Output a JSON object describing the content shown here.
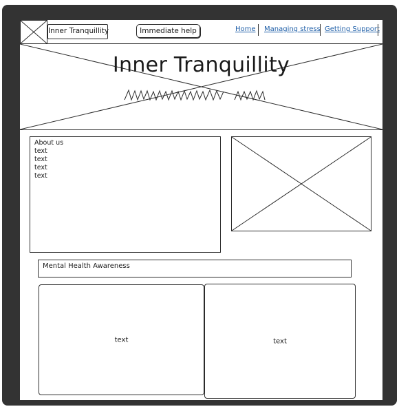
{
  "header": {
    "brand": "Inner Tranquillity",
    "help_button": "Immediate help",
    "nav": [
      {
        "label": "Home"
      },
      {
        "label": "Managing stress"
      },
      {
        "label": "Getting Support"
      }
    ]
  },
  "hero": {
    "title": "Inner Tranquillity",
    "subtitle_scribble": "zigzag placeholder text"
  },
  "about": {
    "heading": "About us",
    "lines": [
      "text",
      "text",
      "text",
      "text"
    ]
  },
  "awareness": {
    "title": "Mental Health Awareness"
  },
  "cards": [
    {
      "text": "text"
    },
    {
      "text": "text"
    }
  ],
  "colors": {
    "frame": "#333333",
    "link": "#1f5fa8",
    "stroke": "#2b2b2b"
  }
}
